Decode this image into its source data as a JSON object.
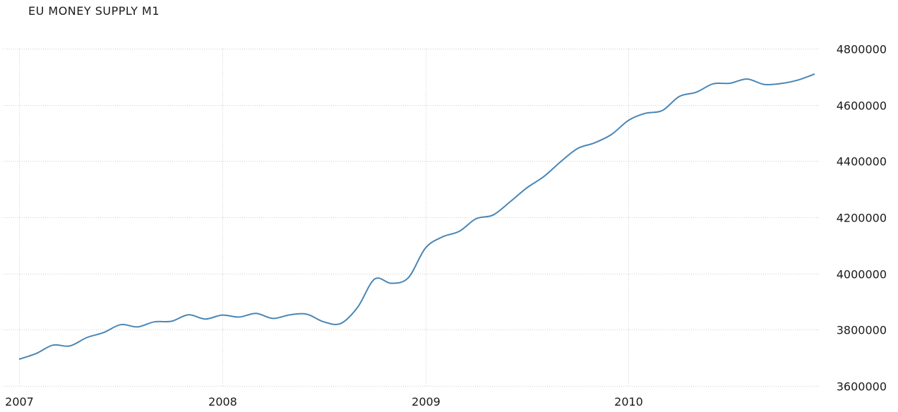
{
  "chart_data": {
    "type": "line",
    "title": "EU MONEY SUPPLY M1",
    "xlabel": "",
    "ylabel": "",
    "x": [
      "2007-01",
      "2007-02",
      "2007-03",
      "2007-04",
      "2007-05",
      "2007-06",
      "2007-07",
      "2007-08",
      "2007-09",
      "2007-10",
      "2007-11",
      "2007-12",
      "2008-01",
      "2008-02",
      "2008-03",
      "2008-04",
      "2008-05",
      "2008-06",
      "2008-07",
      "2008-08",
      "2008-09",
      "2008-10",
      "2008-11",
      "2008-12",
      "2009-01",
      "2009-02",
      "2009-03",
      "2009-04",
      "2009-05",
      "2009-06",
      "2009-07",
      "2009-08",
      "2009-09",
      "2009-10",
      "2009-11",
      "2009-12",
      "2010-01",
      "2010-02",
      "2010-03",
      "2010-04",
      "2010-05",
      "2010-06",
      "2010-07",
      "2010-08",
      "2010-09",
      "2010-10",
      "2010-11",
      "2010-12"
    ],
    "series": [
      {
        "name": "",
        "color": "#4a86b5",
        "values": [
          3695000,
          3715000,
          3745000,
          3742000,
          3772000,
          3790000,
          3818000,
          3810000,
          3828000,
          3830000,
          3853000,
          3838000,
          3852000,
          3845000,
          3858000,
          3840000,
          3853000,
          3855000,
          3828000,
          3822000,
          3880000,
          3980000,
          3965000,
          3985000,
          4090000,
          4130000,
          4150000,
          4195000,
          4208000,
          4255000,
          4305000,
          4345000,
          4398000,
          4445000,
          4465000,
          4495000,
          4545000,
          4570000,
          4580000,
          4630000,
          4645000,
          4675000,
          4677000,
          4692000,
          4673000,
          4676000,
          4688000,
          4710000
        ]
      }
    ],
    "x_ticks": [
      "2007",
      "2008",
      "2009",
      "2010"
    ],
    "y_ticks": [
      3600000,
      3800000,
      4000000,
      4200000,
      4400000,
      4600000,
      4800000
    ],
    "ylim": [
      3600000,
      4800000
    ],
    "xlim": [
      "2007-01",
      "2011-01"
    ],
    "grid": true,
    "legend": "none"
  }
}
